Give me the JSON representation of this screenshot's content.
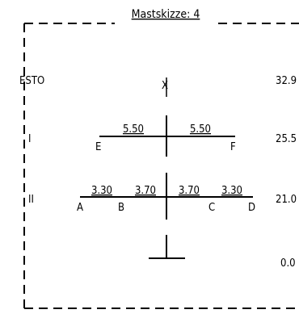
{
  "title": "Mastskizze: 4",
  "levels": [
    {
      "name": "ESTO",
      "height": "32.9"
    },
    {
      "name": "I",
      "height": "25.5"
    },
    {
      "name": "II",
      "height": "21.0"
    },
    {
      "name": "",
      "height": "0.0"
    }
  ],
  "top_marker": "X",
  "upper_crossarm": {
    "spans": [
      "5.50",
      "5.50"
    ],
    "points": [
      "E",
      "F"
    ]
  },
  "lower_crossarm": {
    "spans": [
      "3.30",
      "3.70",
      "3.70",
      "3.30"
    ],
    "points": [
      "A",
      "B",
      "C",
      "D"
    ]
  }
}
